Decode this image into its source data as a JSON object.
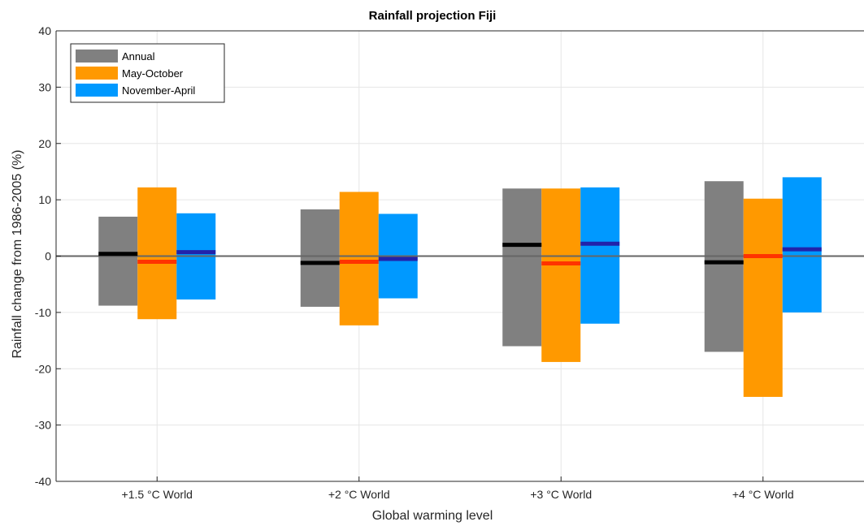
{
  "chart_data": {
    "type": "bar",
    "title": "Rainfall projection Fiji",
    "xlabel": "Global warming level",
    "ylabel": "Rainfall change from 1986-2005 (%)",
    "ylim": [
      -40,
      40
    ],
    "yticks": [
      -40,
      -30,
      -20,
      -10,
      0,
      10,
      20,
      30,
      40
    ],
    "ytick_labels": [
      "-40",
      "-30",
      "-20",
      "-10",
      "0",
      "10",
      "20",
      "30",
      "40"
    ],
    "grid": true,
    "legend_position": "top-left",
    "categories": [
      "+1.5 °C World",
      "+2 °C World",
      "+3 °C World",
      "+4 °C World"
    ],
    "series": [
      {
        "name": "Annual",
        "color": "#808080",
        "median_color": "#000000",
        "low": [
          -8.8,
          -9.0,
          -16.0,
          -17.0
        ],
        "high": [
          7.0,
          8.3,
          12.0,
          13.3
        ],
        "median": [
          0.4,
          -1.2,
          2.0,
          -1.1
        ]
      },
      {
        "name": "May-October",
        "color": "#ff9900",
        "median_color": "#ff3300",
        "low": [
          -11.2,
          -12.3,
          -18.8,
          -25.0
        ],
        "high": [
          12.2,
          11.4,
          12.0,
          10.2
        ],
        "median": [
          -1.0,
          -1.0,
          -1.3,
          0.0
        ]
      },
      {
        "name": "November-April",
        "color": "#0099ff",
        "median_color": "#2222aa",
        "low": [
          -7.7,
          -7.5,
          -12.0,
          -10.0
        ],
        "high": [
          7.6,
          7.5,
          12.2,
          14.0
        ],
        "median": [
          0.7,
          -0.5,
          2.2,
          1.2
        ]
      }
    ]
  }
}
